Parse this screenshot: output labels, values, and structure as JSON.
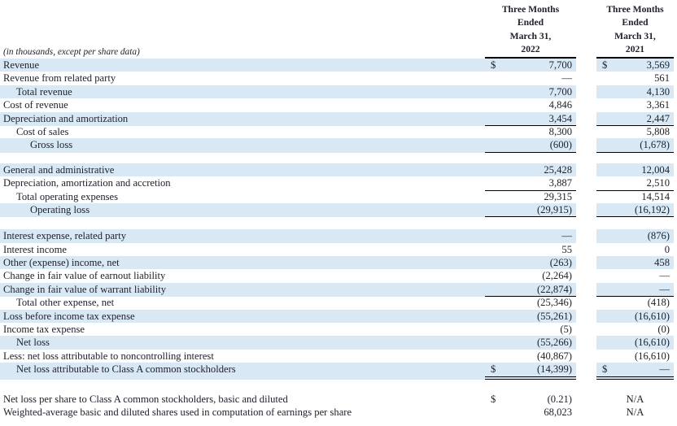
{
  "note": "(in thousands, except per share data)",
  "colors": {
    "stripe": "#d9e8f5",
    "ink": "#20222c",
    "rule": "#000000"
  },
  "columns": [
    {
      "lines": [
        "Three Months",
        "Ended",
        "March 31,"
      ],
      "year": "2022"
    },
    {
      "lines": [
        "Three Months",
        "Ended",
        "March 31,"
      ],
      "year": "2021"
    }
  ],
  "rows": [
    {
      "label": "Revenue",
      "indent": 0,
      "blue": true,
      "dollar1": true,
      "dollar2": true,
      "v2022": "7,700",
      "v2021": "3,569"
    },
    {
      "label": "Revenue from related party",
      "indent": 0,
      "blue": false,
      "v2022": "—",
      "v2021": "561",
      "underline": "single"
    },
    {
      "label": "Total revenue",
      "indent": 1,
      "blue": true,
      "v2022": "7,700",
      "v2021": "4,130"
    },
    {
      "label": "Cost of revenue",
      "indent": 0,
      "blue": false,
      "v2022": "4,846",
      "v2021": "3,361"
    },
    {
      "label": "Depreciation and amortization",
      "indent": 0,
      "blue": true,
      "v2022": "3,454",
      "v2021": "2,447",
      "underline": "single"
    },
    {
      "label": "Cost of sales",
      "indent": 1,
      "blue": false,
      "v2022": "8,300",
      "v2021": "5,808",
      "underline": "single"
    },
    {
      "label": "Gross loss",
      "indent": 2,
      "blue": true,
      "v2022": "(600)",
      "v2021": "(1,678)",
      "underline": "single"
    },
    {
      "spacer": 14
    },
    {
      "label": "General and administrative",
      "indent": 0,
      "blue": true,
      "v2022": "25,428",
      "v2021": "12,004"
    },
    {
      "label": "Depreciation, amortization and accretion",
      "indent": 0,
      "blue": false,
      "v2022": "3,887",
      "v2021": "2,510",
      "underline": "single"
    },
    {
      "label": "Total operating expenses",
      "indent": 1,
      "blue": false,
      "v2022": "29,315",
      "v2021": "14,514",
      "underline": "single"
    },
    {
      "label": "Operating loss",
      "indent": 2,
      "blue": true,
      "v2022": "(29,915)",
      "v2021": "(16,192)",
      "underline": "single"
    },
    {
      "spacer": 16
    },
    {
      "label": "Interest expense, related party",
      "indent": 0,
      "blue": true,
      "v2022": "—",
      "v2021": "(876)"
    },
    {
      "label": "Interest income",
      "indent": 0,
      "blue": false,
      "v2022": "55",
      "v2021": "0"
    },
    {
      "label": "Other (expense) income, net",
      "indent": 0,
      "blue": true,
      "v2022": "(263)",
      "v2021": "458"
    },
    {
      "label": "Change in fair value of earnout liability",
      "indent": 0,
      "blue": false,
      "v2022": "(2,264)",
      "v2021": "—"
    },
    {
      "label": "Change in fair value of warrant liability",
      "indent": 0,
      "blue": true,
      "v2022": "(22,874)",
      "v2021": "—",
      "underline": "single"
    },
    {
      "label": "Total other expense, net",
      "indent": 1,
      "blue": false,
      "v2022": "(25,346)",
      "v2021": "(418)",
      "underline": "single"
    },
    {
      "label": "Loss before income tax expense",
      "indent": 0,
      "blue": true,
      "v2022": "(55,261)",
      "v2021": "(16,610)"
    },
    {
      "label": "Income tax expense",
      "indent": 0,
      "blue": false,
      "v2022": "(5)",
      "v2021": "(0)",
      "underline": "single"
    },
    {
      "label": "Net loss",
      "indent": 1,
      "blue": true,
      "v2022": "(55,266)",
      "v2021": "(16,610)"
    },
    {
      "label": "Less: net loss attributable to noncontrolling interest",
      "indent": 0,
      "blue": false,
      "v2022": "(40,867)",
      "v2021": "(16,610)",
      "underline": "single"
    },
    {
      "label": "Net loss attributable to Class A common stockholders",
      "indent": 1,
      "blue": true,
      "dollar1": true,
      "dollar2": true,
      "v2022": "(14,399)",
      "v2021": "—",
      "underline": "double"
    },
    {
      "spacer": 20
    },
    {
      "label": "Net loss per share to Class A common stockholders, basic and diluted",
      "indent": 0,
      "blue": false,
      "dollar1": true,
      "v2022": "(0.21)",
      "v2021": "N/A",
      "center2021": true
    },
    {
      "label": "Weighted-average basic and diluted shares used in computation of earnings per share",
      "indent": 0,
      "blue": false,
      "v2022": "68,023",
      "v2021": "N/A",
      "center2021": true
    }
  ]
}
